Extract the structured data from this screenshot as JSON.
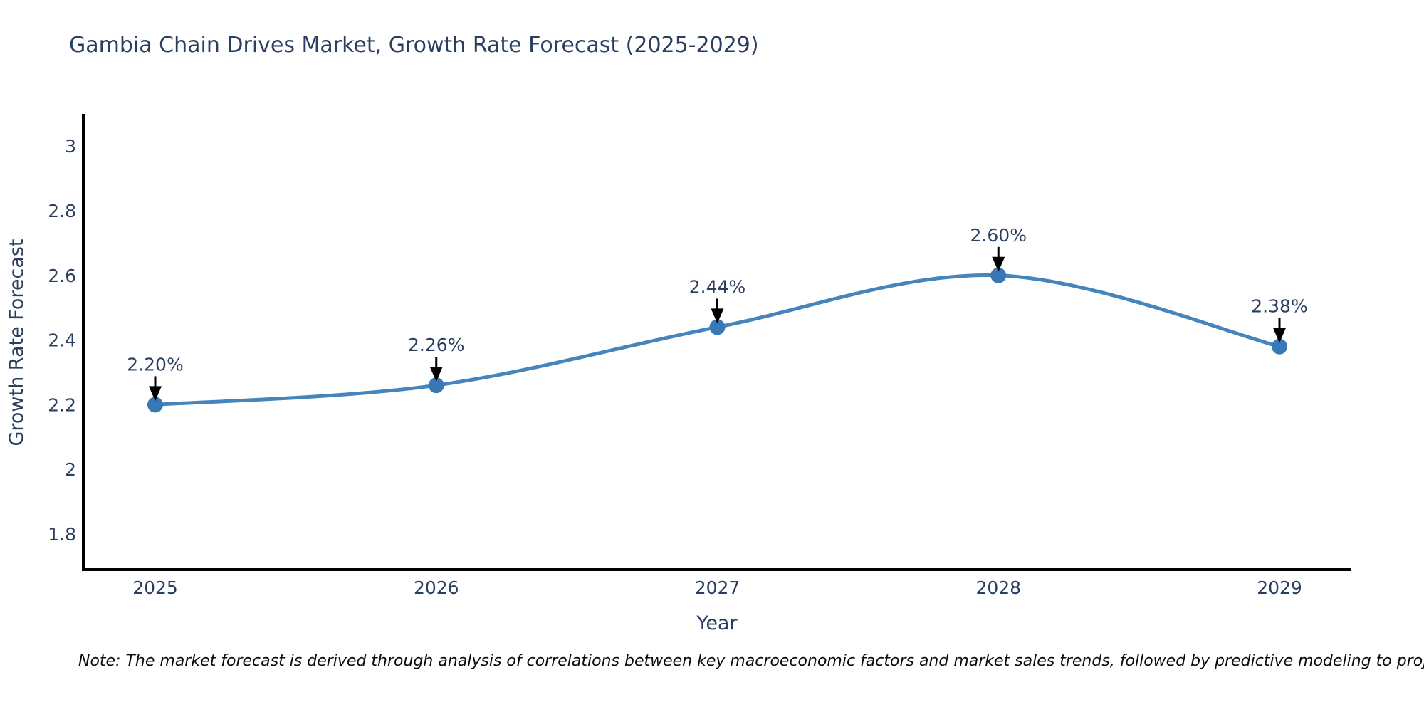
{
  "title": {
    "text": "Gambia Chain Drives Market, Growth Rate Forecast (2025-2029)"
  },
  "note": {
    "text": "Note: The market forecast is derived through analysis of correlations between key macroeconomic factors and market sales trends, followed by predictive modeling to project future sales"
  },
  "chart_data": {
    "type": "line",
    "title": "Gambia Chain Drives Market, Growth Rate Forecast (2025-2029)",
    "x": [
      "2025",
      "2026",
      "2027",
      "2028",
      "2029"
    ],
    "y": [
      2.2,
      2.26,
      2.44,
      2.6,
      2.38
    ],
    "point_labels": [
      "2.20%",
      "2.26%",
      "2.44%",
      "2.60%",
      "2.38%"
    ],
    "xlabel": "Year",
    "ylabel": "Growth Rate Forecast",
    "yticks": [
      3,
      2.8,
      2.6,
      2.4,
      2.2,
      2,
      1.8
    ],
    "ylim": [
      1.69,
      3.095
    ],
    "grid": false,
    "legend": false,
    "annotation_arrows": true,
    "colors": {
      "line": "#4685bc",
      "marker": "#3878b6",
      "axis": "#000000",
      "text": "#2a3f5f",
      "arrow": "#000000"
    }
  }
}
